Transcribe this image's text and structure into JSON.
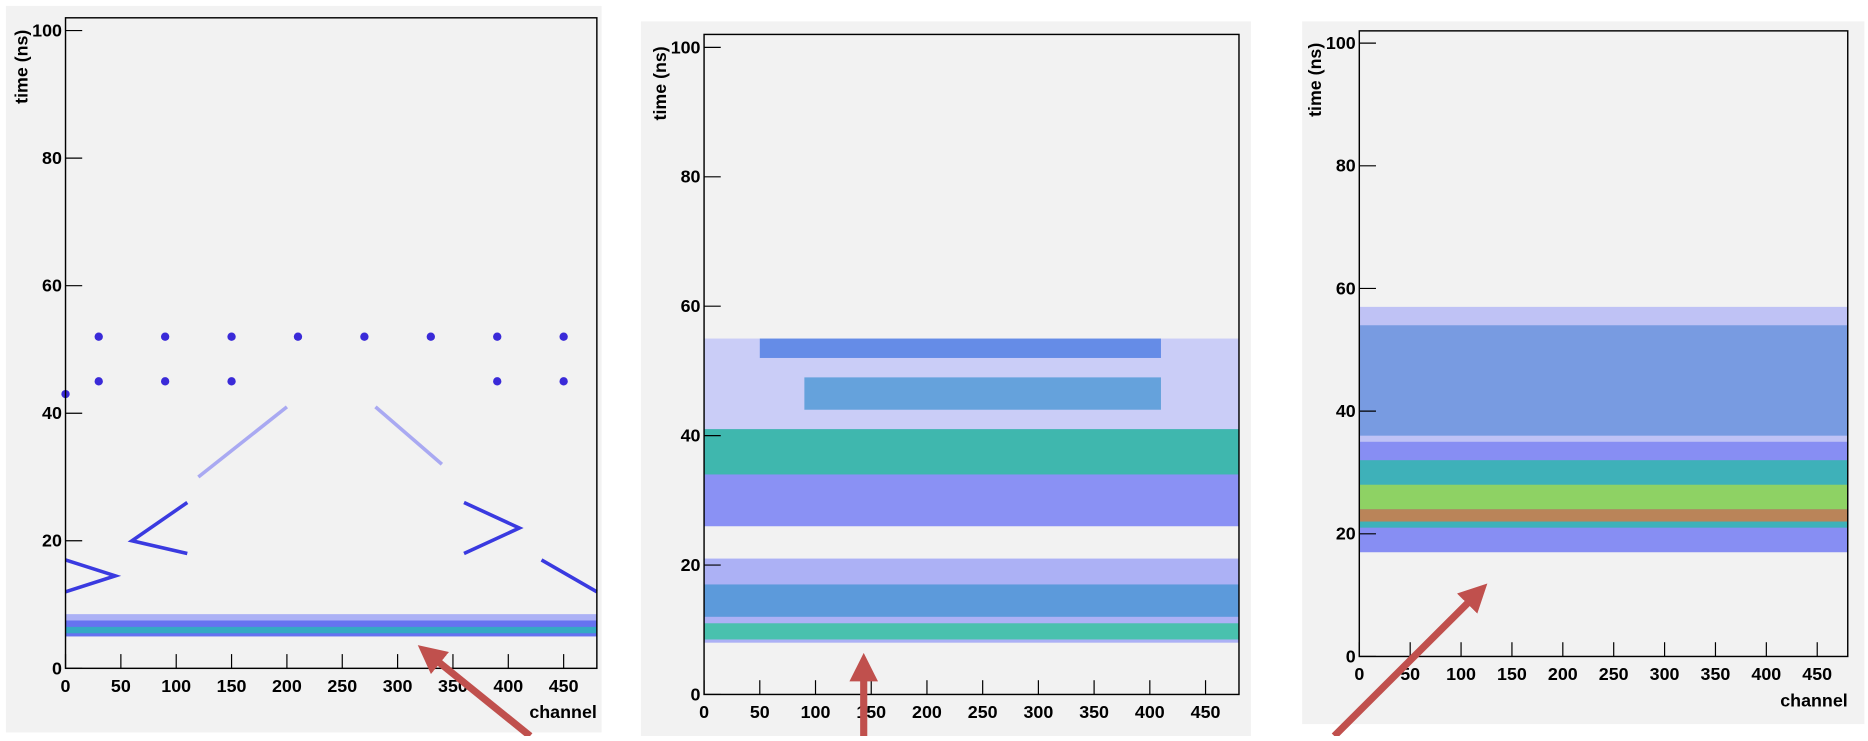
{
  "chart_data": [
    {
      "type": "heatmap",
      "ylabel": "time (ns)",
      "xlabel": "channel",
      "xlim": [
        0,
        480
      ],
      "ylim": [
        0,
        102
      ],
      "xticks": [
        0,
        50,
        100,
        150,
        200,
        250,
        300,
        350,
        400,
        450
      ],
      "yticks": [
        0,
        20,
        40,
        60,
        80,
        100
      ],
      "bands": [
        {
          "x": [
            0,
            480
          ],
          "y": [
            5,
            7.5
          ],
          "color": "#2a3cf0"
        },
        {
          "x": [
            0,
            480
          ],
          "y": [
            5.5,
            6.5
          ],
          "color": "#20c0b0"
        },
        {
          "x": [
            0,
            480
          ],
          "y": [
            7.5,
            8.5
          ],
          "color": "#8f96f7"
        }
      ],
      "lines": [
        {
          "x": [
            0,
            45,
            0
          ],
          "y": [
            17,
            14.5,
            12
          ],
          "color": "#3a3ae0"
        },
        {
          "x": [
            110,
            60,
            110
          ],
          "y": [
            26,
            20,
            18
          ],
          "color": "#3a3ae0"
        },
        {
          "x": [
            360,
            410,
            360
          ],
          "y": [
            26,
            22,
            18
          ],
          "color": "#3a3ae0"
        },
        {
          "x": [
            480,
            430
          ],
          "y": [
            12,
            17
          ],
          "color": "#3a3ae0"
        },
        {
          "x": [
            120,
            200
          ],
          "y": [
            30,
            41
          ],
          "color": "#a9a9f2"
        },
        {
          "x": [
            280,
            340
          ],
          "y": [
            41,
            32
          ],
          "color": "#a9a9f2"
        }
      ],
      "points": {
        "x": [
          30,
          90,
          150,
          210,
          270,
          330,
          390,
          450,
          30,
          90,
          150,
          390,
          450,
          0
        ],
        "y": [
          52,
          52,
          52,
          52,
          52,
          52,
          52,
          52,
          45,
          45,
          45,
          45,
          45,
          43
        ],
        "color": "#3a2ad8"
      }
    },
    {
      "type": "heatmap",
      "ylabel": "time (ns)",
      "xlim": [
        0,
        480
      ],
      "ylim": [
        0,
        102
      ],
      "xticks": [
        0,
        50,
        100,
        150,
        200,
        250,
        300,
        350,
        400,
        450
      ],
      "yticks": [
        0,
        20,
        40,
        60,
        80,
        100
      ],
      "bands": [
        {
          "x": [
            0,
            480
          ],
          "y": [
            8,
            21
          ],
          "color": "#8f96f7"
        },
        {
          "x": [
            0,
            480
          ],
          "y": [
            8.5,
            11
          ],
          "color": "#20c890"
        },
        {
          "x": [
            0,
            480
          ],
          "y": [
            12,
            17
          ],
          "color": "#3a90d0"
        },
        {
          "x": [
            0,
            480
          ],
          "y": [
            26,
            55
          ],
          "color": "#b9bdf9"
        },
        {
          "x": [
            0,
            480
          ],
          "y": [
            26,
            41
          ],
          "color": "#6f78f2"
        },
        {
          "x": [
            0,
            480
          ],
          "y": [
            34,
            41
          ],
          "color": "#20c890"
        },
        {
          "x": [
            90,
            410
          ],
          "y": [
            44,
            49
          ],
          "color": "#3a90d0"
        },
        {
          "x": [
            50,
            410
          ],
          "y": [
            52,
            55
          ],
          "color": "#3a70e0"
        }
      ]
    },
    {
      "type": "heatmap",
      "ylabel": "time (ns)",
      "xlabel": "channel",
      "xlim": [
        0,
        480
      ],
      "ylim": [
        0,
        102
      ],
      "xticks": [
        0,
        50,
        100,
        150,
        200,
        250,
        300,
        350,
        400,
        450
      ],
      "yticks": [
        0,
        20,
        40,
        60,
        80,
        100
      ],
      "bands": [
        {
          "x": [
            0,
            480
          ],
          "y": [
            17,
            57
          ],
          "color": "#a9aef7"
        },
        {
          "x": [
            0,
            480
          ],
          "y": [
            17,
            35
          ],
          "color": "#6f78f2"
        },
        {
          "x": [
            0,
            480
          ],
          "y": [
            21,
            32
          ],
          "color": "#20c0a0"
        },
        {
          "x": [
            0,
            480
          ],
          "y": [
            24,
            28
          ],
          "color": "#b0e040"
        },
        {
          "x": [
            0,
            480
          ],
          "y": [
            22,
            24
          ],
          "color": "#f07030"
        },
        {
          "x": [
            0,
            480
          ],
          "y": [
            36,
            54
          ],
          "color": "#5a8ad8"
        }
      ]
    }
  ]
}
